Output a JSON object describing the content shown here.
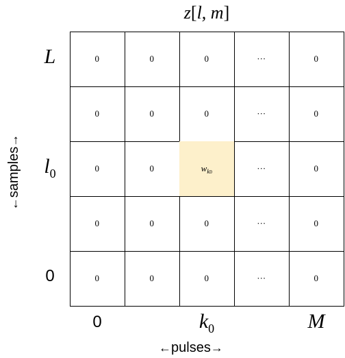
{
  "title": {
    "var": "z",
    "args": "l, m"
  },
  "row_labels": [
    {
      "text": "L",
      "sub": "",
      "style": "italic"
    },
    {
      "text": "",
      "sub": "",
      "style": "italic"
    },
    {
      "text": "l",
      "sub": "0",
      "style": "italic"
    },
    {
      "text": "",
      "sub": "",
      "style": "italic"
    },
    {
      "text": "0",
      "sub": "",
      "style": "sans"
    }
  ],
  "col_labels": [
    {
      "text": "0",
      "sub": "",
      "style": "sans"
    },
    {
      "text": "",
      "sub": "",
      "style": "italic"
    },
    {
      "text": "k",
      "sub": "0",
      "style": "italic"
    },
    {
      "text": "",
      "sub": "",
      "style": "italic"
    },
    {
      "text": "M",
      "sub": "",
      "style": "italic"
    }
  ],
  "cells": [
    [
      "0",
      "0",
      "0",
      "···",
      "0"
    ],
    [
      "0",
      "0",
      "0",
      "···",
      "0"
    ],
    [
      "0",
      "0",
      "w",
      "···",
      "0"
    ],
    [
      "0",
      "0",
      "0",
      "···",
      "0"
    ],
    [
      "0",
      "0",
      "0",
      "···",
      "0"
    ]
  ],
  "highlight": {
    "row": 2,
    "col": 2,
    "sub": "k",
    "subsub": "0",
    "color": "#fdf0cb"
  },
  "axis": {
    "x_label": "pulses",
    "y_label": "samples",
    "left_arrow": "←",
    "right_arrow": "→"
  }
}
